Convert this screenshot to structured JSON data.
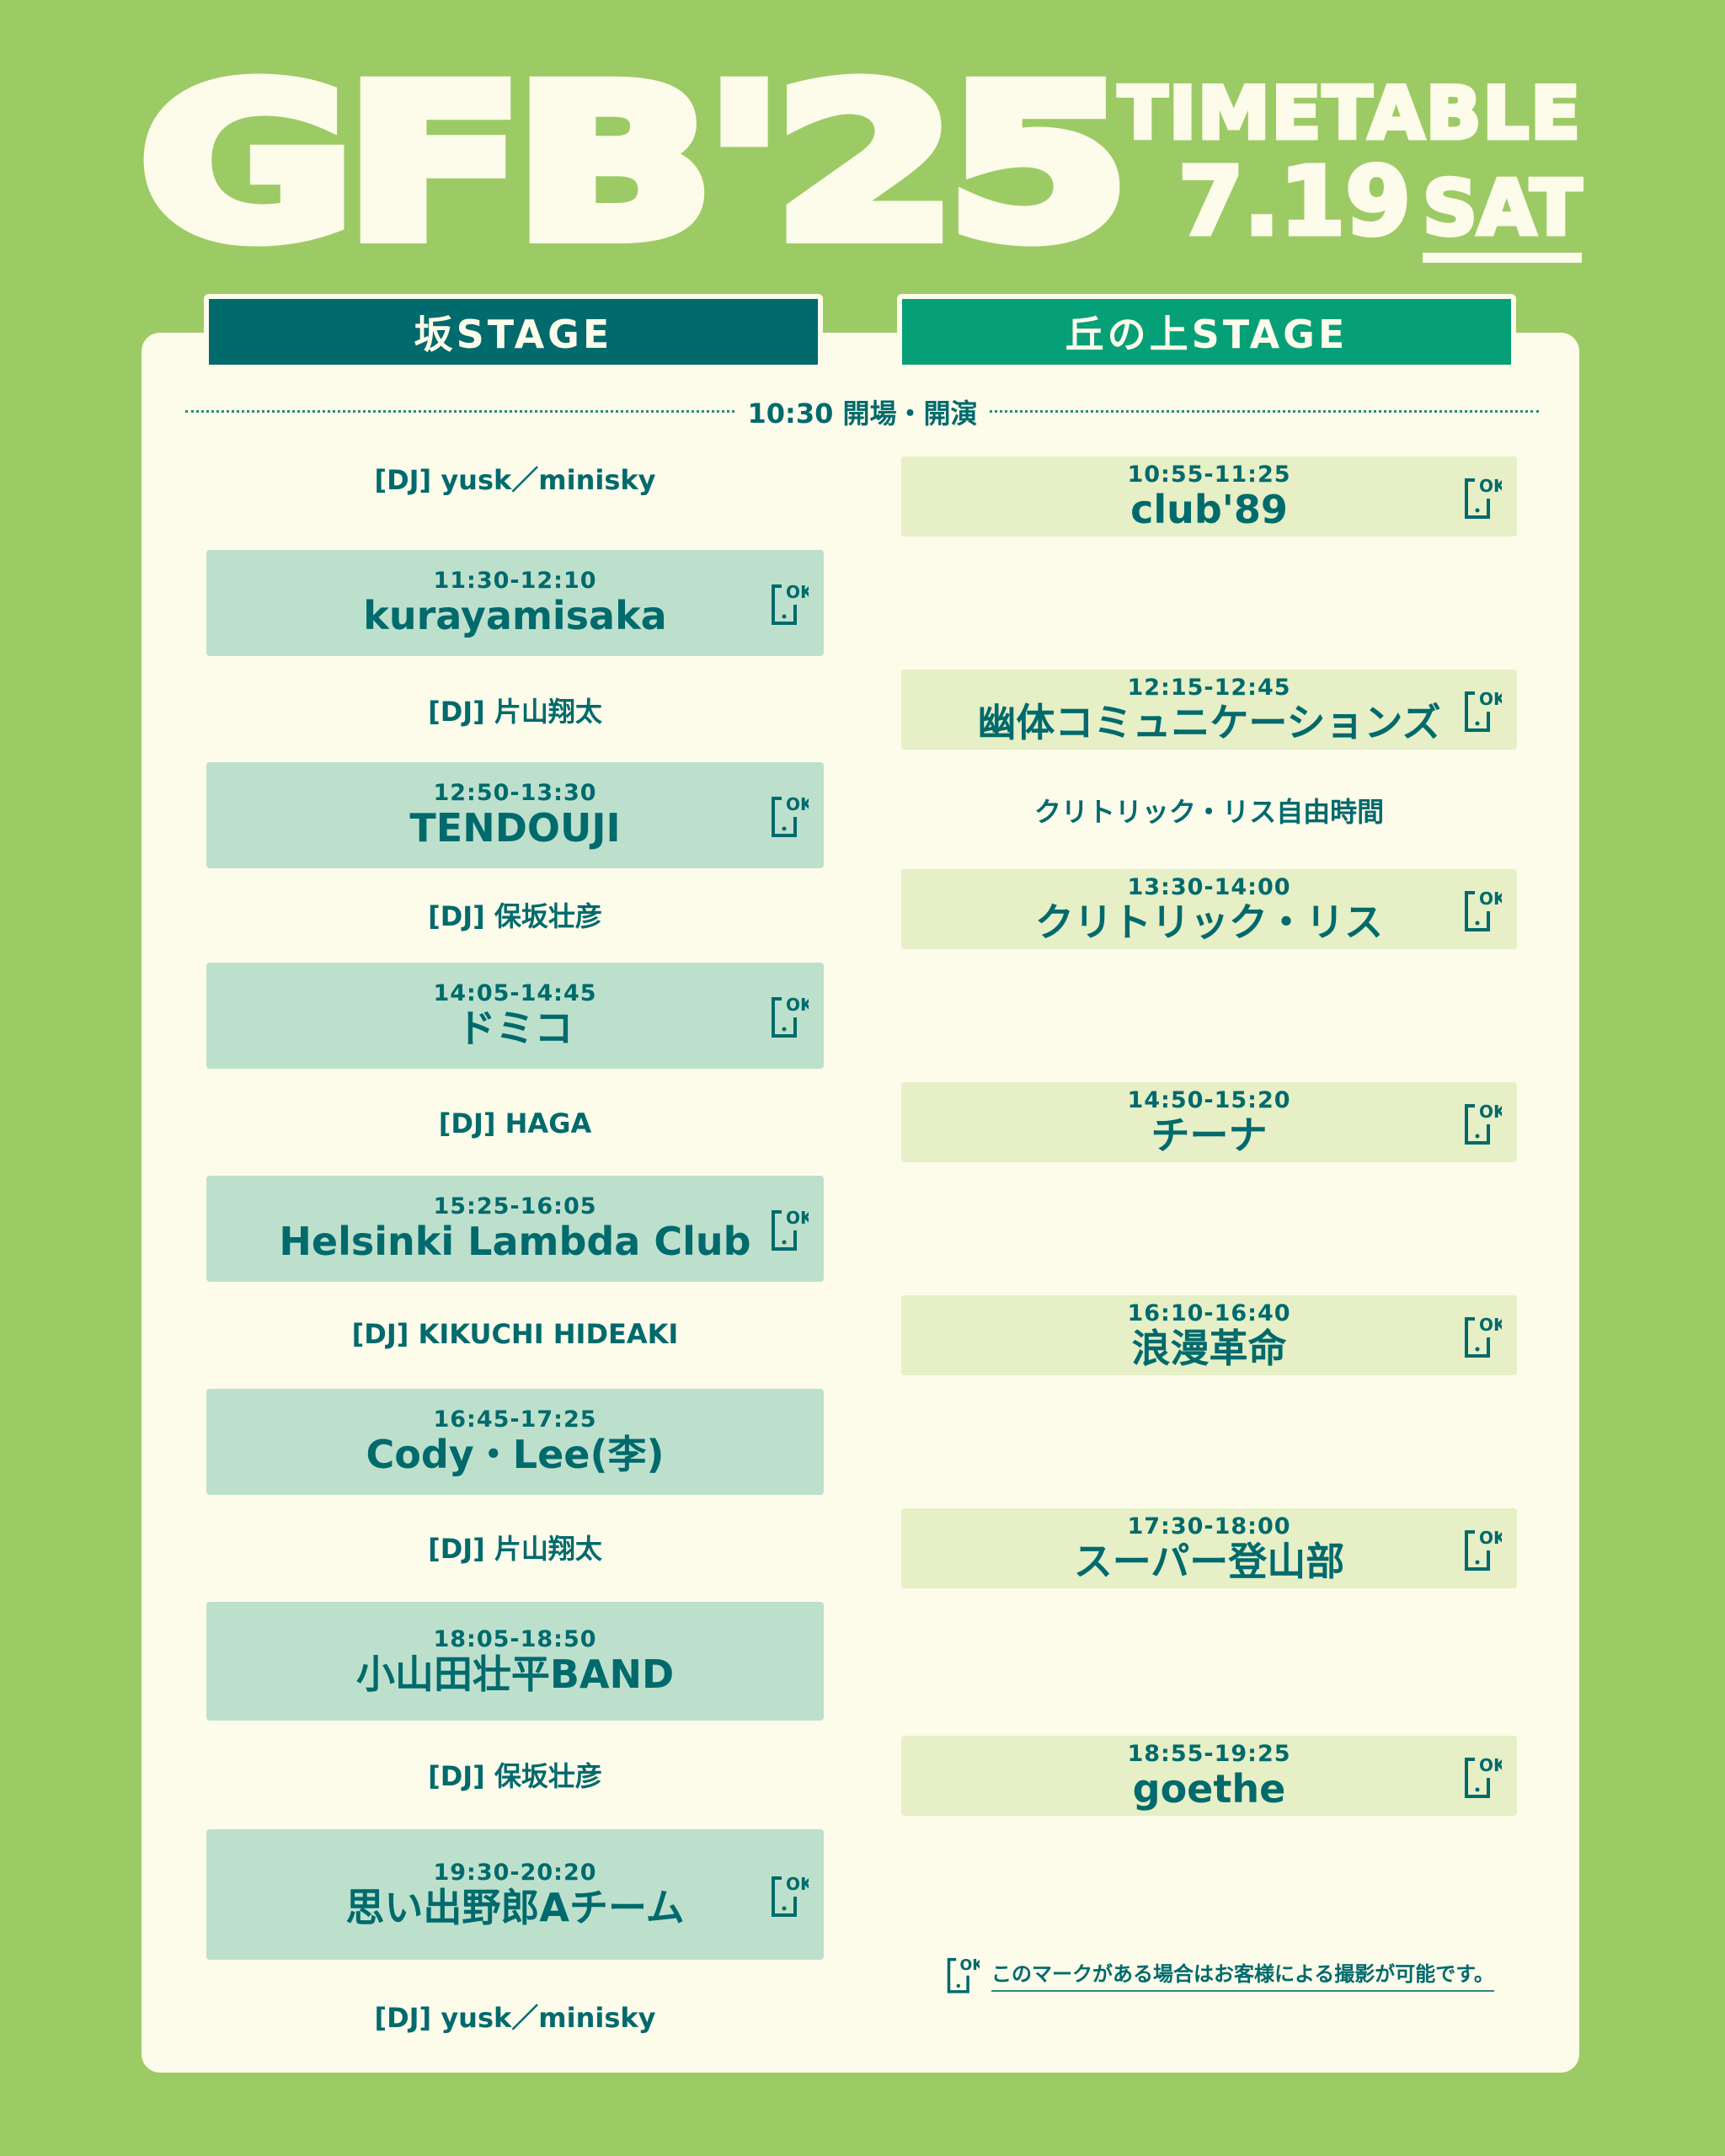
{
  "logo": "GFB'25",
  "title": {
    "line1": "TIMETABLE",
    "date": "7.19",
    "day": "SAT"
  },
  "stages": {
    "left": "坂STAGE",
    "right": "丘の上STAGE"
  },
  "opening": "10:30 開場・開演",
  "colors": {
    "background": "#9ccb66",
    "card": "#fdfbea",
    "text": "#006a6c",
    "left_tab": "#006a6c",
    "right_tab": "#06a078",
    "left_box": "#bde0cd",
    "right_box": "#e6efc6"
  },
  "left": [
    {
      "type": "dj",
      "text": "[DJ] yusk／minisky"
    },
    {
      "type": "act",
      "time": "11:30-12:10",
      "name": "kurayamisaka",
      "photo_ok": true
    },
    {
      "type": "dj",
      "text": "[DJ] 片山翔太"
    },
    {
      "type": "act",
      "time": "12:50-13:30",
      "name": "TENDOUJI",
      "photo_ok": true
    },
    {
      "type": "dj",
      "text": "[DJ] 保坂壮彦"
    },
    {
      "type": "act",
      "time": "14:05-14:45",
      "name": "ドミコ",
      "photo_ok": true
    },
    {
      "type": "dj",
      "text": "[DJ] HAGA"
    },
    {
      "type": "act",
      "time": "15:25-16:05",
      "name": "Helsinki Lambda Club",
      "photo_ok": true
    },
    {
      "type": "dj",
      "text": "[DJ] KIKUCHI HIDEAKI"
    },
    {
      "type": "act",
      "time": "16:45-17:25",
      "name": "Cody・Lee(李)",
      "photo_ok": false
    },
    {
      "type": "dj",
      "text": "[DJ] 片山翔太"
    },
    {
      "type": "act",
      "time": "18:05-18:50",
      "name": "小山田壮平BAND",
      "photo_ok": false
    },
    {
      "type": "dj",
      "text": "[DJ] 保坂壮彦"
    },
    {
      "type": "act",
      "time": "19:30-20:20",
      "name": "思い出野郎Aチーム",
      "photo_ok": true
    },
    {
      "type": "dj",
      "text": "[DJ] yusk／minisky"
    }
  ],
  "right": [
    {
      "type": "act",
      "time": "10:55-11:25",
      "name": "club'89",
      "photo_ok": true
    },
    {
      "type": "act",
      "time": "12:15-12:45",
      "name": "幽体コミュニケーションズ",
      "photo_ok": true
    },
    {
      "type": "dj",
      "text": "クリトリック・リス自由時間"
    },
    {
      "type": "act",
      "time": "13:30-14:00",
      "name": "クリトリック・リス",
      "photo_ok": true
    },
    {
      "type": "act",
      "time": "14:50-15:20",
      "name": "チーナ",
      "photo_ok": true
    },
    {
      "type": "act",
      "time": "16:10-16:40",
      "name": "浪漫革命",
      "photo_ok": true
    },
    {
      "type": "act",
      "time": "17:30-18:00",
      "name": "スーパー登山部",
      "photo_ok": true
    },
    {
      "type": "act",
      "time": "18:55-19:25",
      "name": "goethe",
      "photo_ok": true
    }
  ],
  "note": "このマークがある場合はお客様による撮影が可能です。",
  "ok_icon_label": "OK"
}
